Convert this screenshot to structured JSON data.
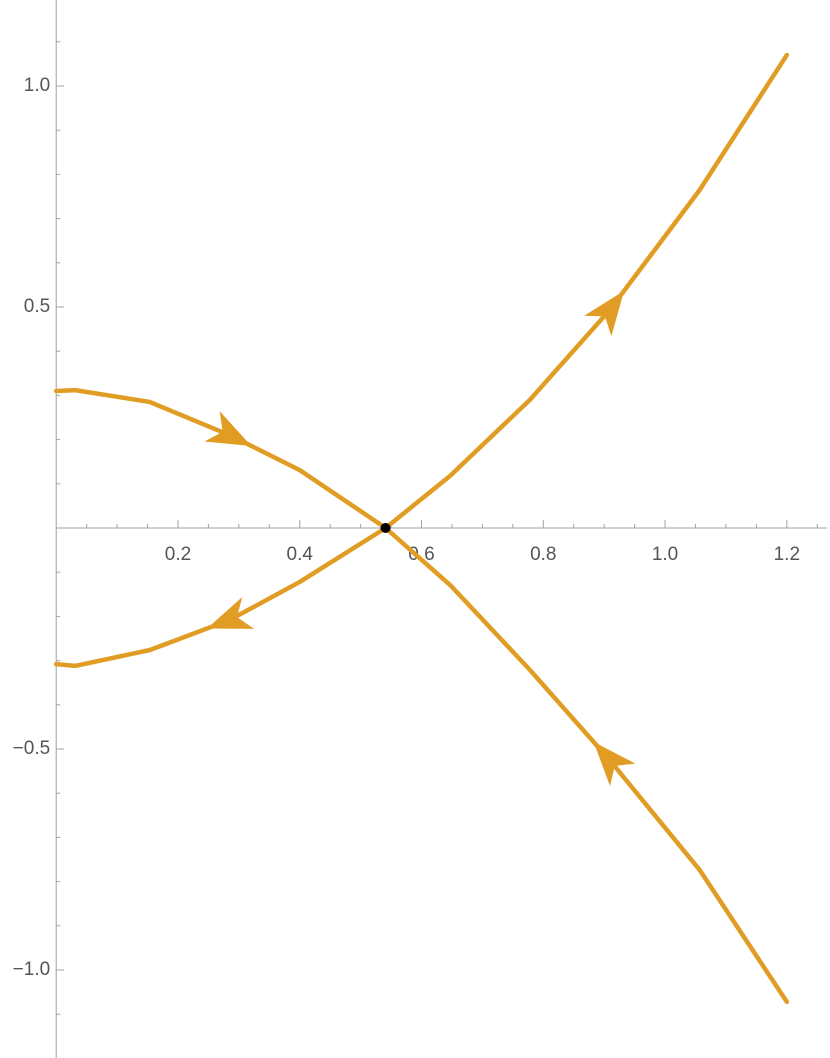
{
  "chart_data": {
    "type": "line",
    "series": [
      {
        "color": "#e19c24",
        "x": [
          0,
          0.031,
          0.154,
          0.285,
          0.4,
          0.541,
          0.647,
          0.778,
          0.909,
          1.057,
          1.2
        ],
        "values": [
          -0.308,
          -0.312,
          -0.276,
          -0.208,
          -0.122,
          0,
          0.118,
          0.29,
          0.493,
          0.765,
          1.07
        ]
      },
      {
        "color": "#e19c24",
        "x": [
          0,
          0.031,
          0.154,
          0.285,
          0.4,
          0.541,
          0.647,
          0.778,
          0.909,
          1.057,
          1.2
        ],
        "values": [
          0.31,
          0.312,
          0.285,
          0.21,
          0.131,
          0,
          -0.129,
          -0.321,
          -0.525,
          -0.774,
          -1.072
        ]
      }
    ],
    "markers": {
      "x": [
        0.541
      ],
      "values": [
        0
      ],
      "color": "#000000"
    },
    "xlim": [
      0,
      1.266
    ],
    "ylim": [
      -1.2,
      1.2
    ],
    "xticks": [
      0.2,
      0.4,
      0.6,
      0.8,
      {
        "value": 1,
        "label": "1.0"
      },
      1.2
    ],
    "yticks": [
      {
        "value": -1,
        "label": "−1.0"
      },
      {
        "value": -0.5,
        "label": "−0.5"
      },
      0.5,
      {
        "value": 1,
        "label": "1.0"
      }
    ],
    "xminorticks": [
      0.05,
      0.1,
      0.15,
      0.25,
      0.3,
      0.35,
      0.45,
      0.5,
      0.55,
      0.65,
      0.7,
      0.75,
      0.85,
      0.9,
      0.95,
      1.05,
      1.1,
      1.15,
      1.25
    ],
    "yminorticks": [
      -1.1,
      -0.9,
      -0.8,
      -0.7,
      -0.6,
      -0.4,
      -0.3,
      -0.2,
      -0.1,
      0.1,
      0.2,
      0.3,
      0.4,
      0.6,
      0.7,
      0.8,
      0.9,
      1.1
    ]
  }
}
